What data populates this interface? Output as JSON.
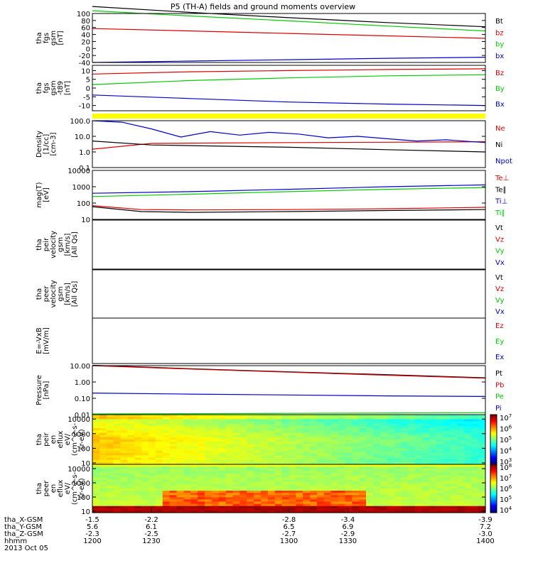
{
  "title": "P5 (TH-A) fields and ground moments overview",
  "colors": {
    "black": "#000000",
    "red": "#dd0000",
    "green": "#00cc00",
    "blue": "#0000cc",
    "yellow": "#ffff00"
  },
  "chart_data": [
    {
      "type": "line",
      "ylabel": [
        "tha",
        "fgs",
        "gsm",
        "[nT]"
      ],
      "ylim": [
        -40,
        100
      ],
      "yticks": [
        "100",
        "80",
        "60",
        "40",
        "20",
        "0",
        "-20",
        "-40"
      ],
      "xlim": [
        1200,
        1400
      ],
      "series": [
        {
          "name": "Bt",
          "x": [
            1200,
            1250,
            1300,
            1350,
            1400
          ],
          "values": [
            120,
            103,
            88,
            74,
            62
          ]
        },
        {
          "name": "bz",
          "x": [
            1200,
            1250,
            1300,
            1350,
            1400
          ],
          "values": [
            57,
            50,
            43,
            36,
            29
          ]
        },
        {
          "name": "by",
          "x": [
            1200,
            1250,
            1300,
            1350,
            1400
          ],
          "values": [
            108,
            93,
            79,
            64,
            50
          ]
        },
        {
          "name": "bx",
          "x": [
            1200,
            1250,
            1300,
            1350,
            1400
          ],
          "values": [
            -40,
            -36,
            -32,
            -28,
            -25
          ]
        }
      ]
    },
    {
      "type": "line",
      "ylabel": [
        "tha",
        "fgs",
        "gsm",
        "-t89",
        "[nT]"
      ],
      "ylim": [
        -13,
        13
      ],
      "yticks": [
        "10",
        "5",
        "0",
        "-5",
        "-10"
      ],
      "xlim": [
        1200,
        1400
      ],
      "series": [
        {
          "name": "Bz",
          "x": [
            1200,
            1250,
            1300,
            1350,
            1400
          ],
          "values": [
            8,
            9.3,
            10,
            10.6,
            11
          ]
        },
        {
          "name": "By",
          "x": [
            1200,
            1250,
            1300,
            1350,
            1400
          ],
          "values": [
            2,
            4.3,
            5.8,
            7,
            7.6
          ]
        },
        {
          "name": "Bx",
          "x": [
            1200,
            1250,
            1300,
            1350,
            1400
          ],
          "values": [
            -4,
            -6,
            -8,
            -9.2,
            -10
          ]
        }
      ]
    },
    {
      "type": "line",
      "ylabel": [
        "Density",
        "[1/cc]",
        "[cm-3]"
      ],
      "ylim": [
        0.1,
        100
      ],
      "log": true,
      "yticks": [
        "100.0",
        "10.0",
        "1.0",
        "0.1"
      ],
      "xlim": [
        1200,
        1400
      ],
      "series": [
        {
          "name": "Ne",
          "x": [
            1200,
            1230,
            1300,
            1350,
            1400
          ],
          "values": [
            1.5,
            3.5,
            4.0,
            4.2,
            4.5
          ]
        },
        {
          "name": "Ni",
          "x": [
            1200,
            1230,
            1300,
            1350,
            1400
          ],
          "values": [
            5,
            2.8,
            2.0,
            1.4,
            1.0
          ]
        },
        {
          "name": "Npot",
          "x": [
            1200,
            1215,
            1230,
            1245,
            1260,
            1275,
            1290,
            1305,
            1320,
            1335,
            1350,
            1365,
            1380,
            1400
          ],
          "values": [
            100,
            80,
            30,
            9,
            20,
            12,
            18,
            14,
            8,
            10,
            7,
            5,
            6,
            4
          ]
        }
      ]
    },
    {
      "type": "line",
      "ylabel": [
        "mag(T)",
        "[eV]"
      ],
      "ylim": [
        10,
        10000
      ],
      "log": true,
      "yticks": [
        "10000",
        "1000",
        "100",
        "10"
      ],
      "xlim": [
        1200,
        1400
      ],
      "series": [
        {
          "name": "Te⊥",
          "x": [
            1200,
            1225,
            1250,
            1300,
            1350,
            1400
          ],
          "values": [
            70,
            40,
            38,
            40,
            45,
            55
          ]
        },
        {
          "name": "Te∥",
          "x": [
            1200,
            1225,
            1250,
            1300,
            1350,
            1400
          ],
          "values": [
            60,
            30,
            27,
            30,
            35,
            40
          ]
        },
        {
          "name": "Ti⊥",
          "x": [
            1200,
            1250,
            1300,
            1350,
            1400
          ],
          "values": [
            400,
            500,
            700,
            1000,
            1300
          ]
        },
        {
          "name": "Ti∥",
          "x": [
            1200,
            1250,
            1300,
            1350,
            1400
          ],
          "values": [
            250,
            350,
            500,
            700,
            900
          ]
        }
      ]
    },
    {
      "type": "line",
      "ylabel": [
        "tha",
        "peir",
        "velocity",
        "gsm",
        "[km/s]",
        "[All Qs]"
      ],
      "ylim": [
        0,
        1
      ],
      "xlim": [
        1200,
        1400
      ],
      "series": [
        {
          "name": "Vt",
          "values": []
        },
        {
          "name": "Vz",
          "values": []
        },
        {
          "name": "Vy",
          "values": []
        },
        {
          "name": "Vx",
          "values": []
        }
      ]
    },
    {
      "type": "line",
      "ylabel": [
        "tha",
        "peer",
        "velocity",
        "gsm",
        "[km/s]",
        "[All Qs]"
      ],
      "ylim": [
        0,
        1
      ],
      "xlim": [
        1200,
        1400
      ],
      "series": [
        {
          "name": "Vt",
          "values": []
        },
        {
          "name": "Vz",
          "values": []
        },
        {
          "name": "Vy",
          "values": []
        },
        {
          "name": "Vx",
          "values": []
        }
      ]
    },
    {
      "type": "line",
      "ylabel": [
        "E=-VxB",
        "[mV/m]"
      ],
      "ylim": [
        0,
        1
      ],
      "xlim": [
        1200,
        1400
      ],
      "series": [
        {
          "name": "Ez",
          "values": []
        },
        {
          "name": "Ey",
          "values": []
        },
        {
          "name": "Ex",
          "values": []
        }
      ]
    },
    {
      "type": "line",
      "ylabel": [
        "Pressure",
        "[nPa]"
      ],
      "ylim": [
        0.01,
        10
      ],
      "log": true,
      "yticks": [
        "10.00",
        "1.00",
        "0.10",
        "0.01"
      ],
      "xlim": [
        1200,
        1400
      ],
      "series": [
        {
          "name": "Pt",
          "x": [
            1200,
            1250,
            1300,
            1350,
            1400
          ],
          "values": [
            10.5,
            6.5,
            4.2,
            2.8,
            1.8
          ]
        },
        {
          "name": "Pb",
          "x": [
            1200,
            1250,
            1300,
            1350,
            1400
          ],
          "values": [
            10,
            6.2,
            4.0,
            2.6,
            1.7
          ]
        },
        {
          "name": "Pe",
          "x": [
            1200,
            1300,
            1400
          ],
          "values": [
            0.011,
            0.012,
            0.013
          ]
        },
        {
          "name": "Pi",
          "x": [
            1200,
            1250,
            1300,
            1350,
            1400
          ],
          "values": [
            0.21,
            0.18,
            0.16,
            0.14,
            0.13
          ]
        }
      ]
    },
    {
      "type": "heatmap",
      "ylabel": [
        "tha",
        "peir",
        "en",
        "eflux",
        "eV/",
        "(cm^2-s-",
        "sr-eV)"
      ],
      "ylim": [
        8,
        20000
      ],
      "log": true,
      "yticks": [
        "10000",
        "1000",
        "100",
        "10"
      ],
      "xlim": [
        1200,
        1400
      ],
      "colorbar": {
        "min_exp": 3,
        "max_exp": 7,
        "labels": [
          "10^7",
          "10^6",
          "10^5",
          "10^4",
          "10^3"
        ]
      }
    },
    {
      "type": "heatmap",
      "ylabel": [
        "tha",
        "peer",
        "en",
        "eflux",
        "eV/",
        "(cm^2-s-",
        "sr-eV)"
      ],
      "ylim": [
        8,
        20000
      ],
      "log": true,
      "yticks": [
        "10000",
        "1000",
        "100",
        "10"
      ],
      "xlim": [
        1200,
        1400
      ],
      "colorbar": {
        "min_exp": 4,
        "max_exp": 8,
        "labels": [
          "10^8",
          "10^7",
          "10^6",
          "10^5",
          "10^4"
        ]
      }
    }
  ],
  "xaxis": {
    "row_labels": [
      "tha_X-GSM",
      "tha_Y-GSM",
      "tha_Z-GSM",
      "hhmm",
      "2013 Oct 05"
    ],
    "x": [
      1200,
      1230,
      1300,
      1330,
      1400
    ],
    "rows": [
      [
        "-1.5",
        "-2.2",
        "-2.8",
        "-3.4",
        "-3.9"
      ],
      [
        "5.6",
        "6.1",
        "6.5",
        "6.9",
        "7.2"
      ],
      [
        "-2.3",
        "-2.5",
        "-2.7",
        "-2.9",
        "-3.0"
      ],
      [
        "1200",
        "1230",
        "1300",
        "1330",
        "1400"
      ]
    ]
  }
}
